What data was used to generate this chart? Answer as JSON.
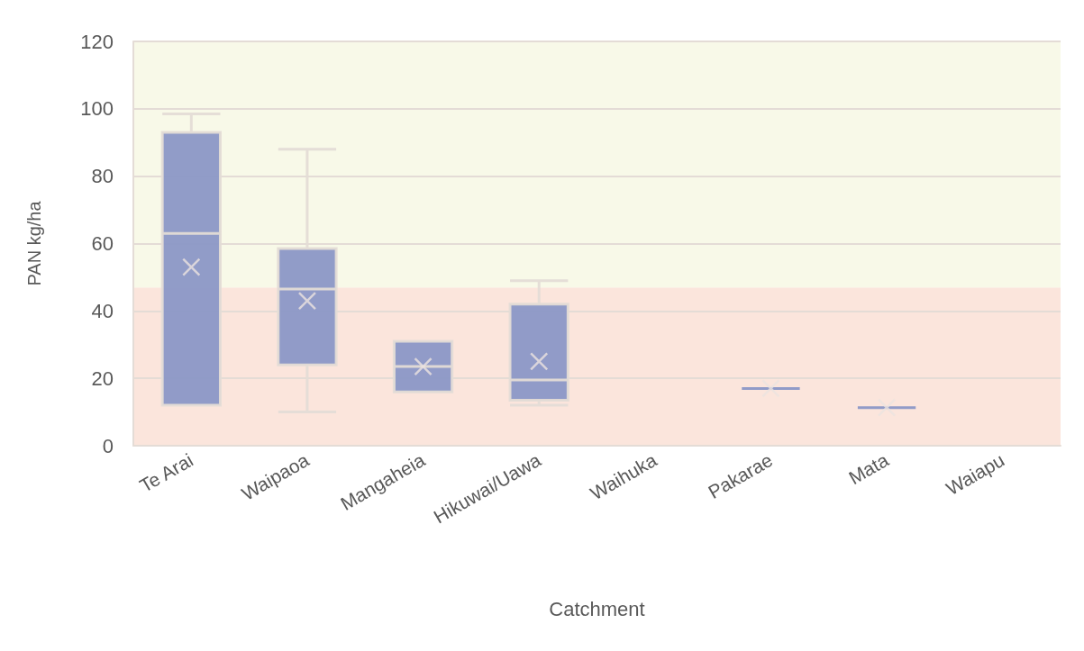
{
  "chart_data": {
    "type": "box",
    "xlabel": "Catchment",
    "ylabel": "PAN kg/ha",
    "categories": [
      "Te Arai",
      "Waipaoa",
      "Mangaheia",
      "Hikuwai/Uawa",
      "Waihuka",
      "Pakarae",
      "Mata",
      "Waiapu"
    ],
    "color": "#8b97c6",
    "boxes": [
      {
        "low": 12,
        "q1": 12,
        "median": 63,
        "q3": 93,
        "high": 98.5,
        "mean": 53
      },
      {
        "low": 10,
        "q1": 24,
        "median": 46.5,
        "q3": 58.5,
        "high": 88,
        "mean": 43
      },
      {
        "low": 16,
        "q1": 16,
        "median": 23.5,
        "q3": 31,
        "high": 31,
        "mean": 23.5
      },
      {
        "low": 12,
        "q1": 13.5,
        "median": 19.5,
        "q3": 42,
        "high": 49,
        "mean": 25
      },
      null,
      {
        "low": 17,
        "q1": 17,
        "median": 17,
        "q3": 17,
        "high": 17,
        "mean": 17
      },
      {
        "low": 11.3,
        "q1": 11.3,
        "median": 11.3,
        "q3": 11.3,
        "high": 11.3,
        "mean": 11.3
      },
      null
    ],
    "ylim": [
      0,
      120
    ],
    "yticks": [
      0,
      20,
      40,
      60,
      80,
      100,
      120
    ],
    "grid": "y",
    "bands": [
      {
        "axis": "y",
        "from": 0,
        "to": 47,
        "color": "#fbe5dc"
      },
      {
        "axis": "y",
        "from": 47,
        "to": 120,
        "color": "#f8f9e8"
      }
    ]
  }
}
